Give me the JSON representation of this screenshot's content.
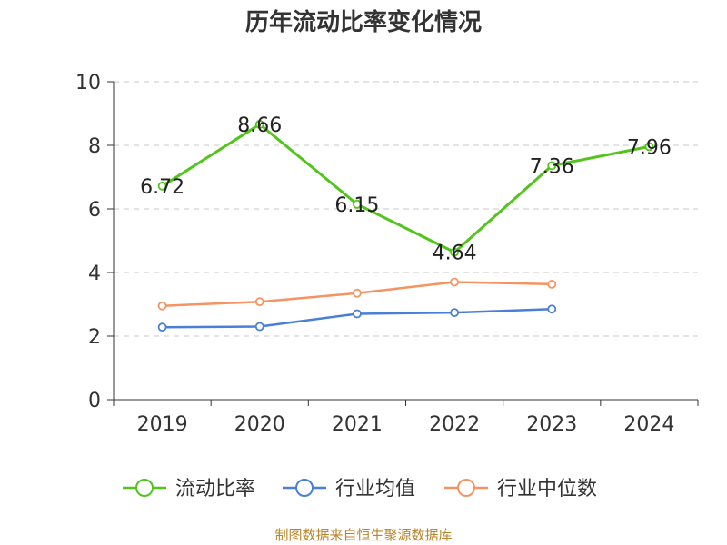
{
  "chart_data": {
    "type": "line",
    "title": "历年流动比率变化情况",
    "xlabel": "",
    "ylabel": "",
    "categories": [
      "2019",
      "2020",
      "2021",
      "2022",
      "2023",
      "2024"
    ],
    "ylim": [
      0,
      10
    ],
    "yticks": [
      0,
      2,
      4,
      6,
      8,
      10
    ],
    "grid": "horizontal dashed",
    "legend_position": "bottom",
    "series": [
      {
        "name": "流动比率",
        "color": "#52c41a",
        "values": [
          6.72,
          8.66,
          6.15,
          4.64,
          7.36,
          7.96
        ],
        "labels": [
          "6.72",
          "8.66",
          "6.15",
          "4.64",
          "7.36",
          "7.96"
        ]
      },
      {
        "name": "行业均值",
        "color": "#4a7fd6",
        "values": [
          2.28,
          2.3,
          2.7,
          2.74,
          2.85,
          null
        ]
      },
      {
        "name": "行业中位数",
        "color": "#f59462",
        "values": [
          2.95,
          3.08,
          3.35,
          3.7,
          3.63,
          null
        ]
      }
    ],
    "source": "制图数据来自恒生聚源数据库"
  }
}
